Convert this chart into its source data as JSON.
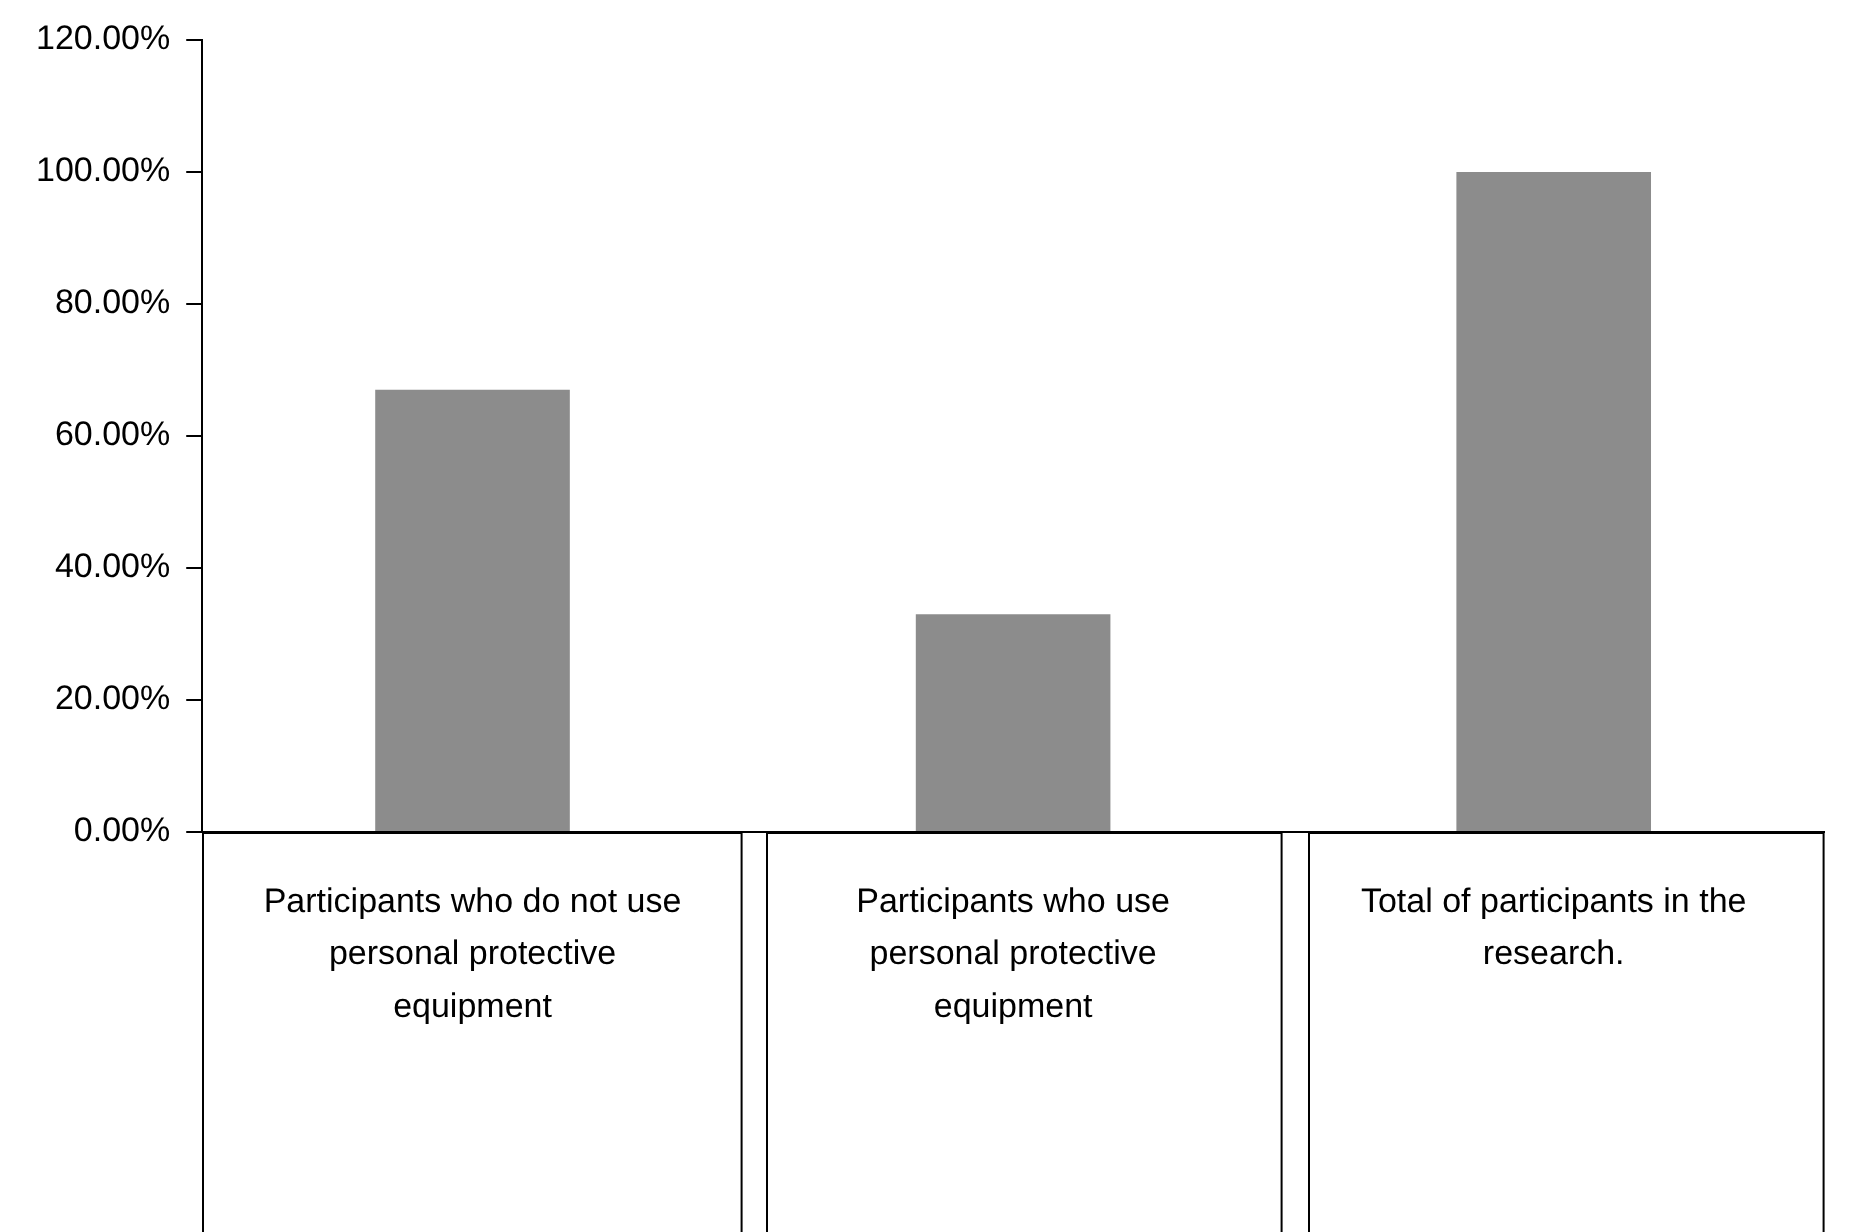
{
  "chart_data": {
    "type": "bar",
    "categories": [
      "Participants who do not use personal protective equipment",
      "Participants who use personal protective equipment",
      "Total of participants in the research."
    ],
    "values": [
      67,
      33,
      100
    ],
    "color": "#8c8c8c",
    "ylim": [
      0,
      120
    ],
    "yticks": [
      {
        "value": 0,
        "label": "0.00%"
      },
      {
        "value": 20,
        "label": "20.00%"
      },
      {
        "value": 40,
        "label": "40.00%"
      },
      {
        "value": 60,
        "label": "60.00%"
      },
      {
        "value": 80,
        "label": "80.00%"
      },
      {
        "value": 100,
        "label": "100.00%"
      },
      {
        "value": 120,
        "label": "120.00%"
      }
    ],
    "grid": false,
    "legend": false
  }
}
